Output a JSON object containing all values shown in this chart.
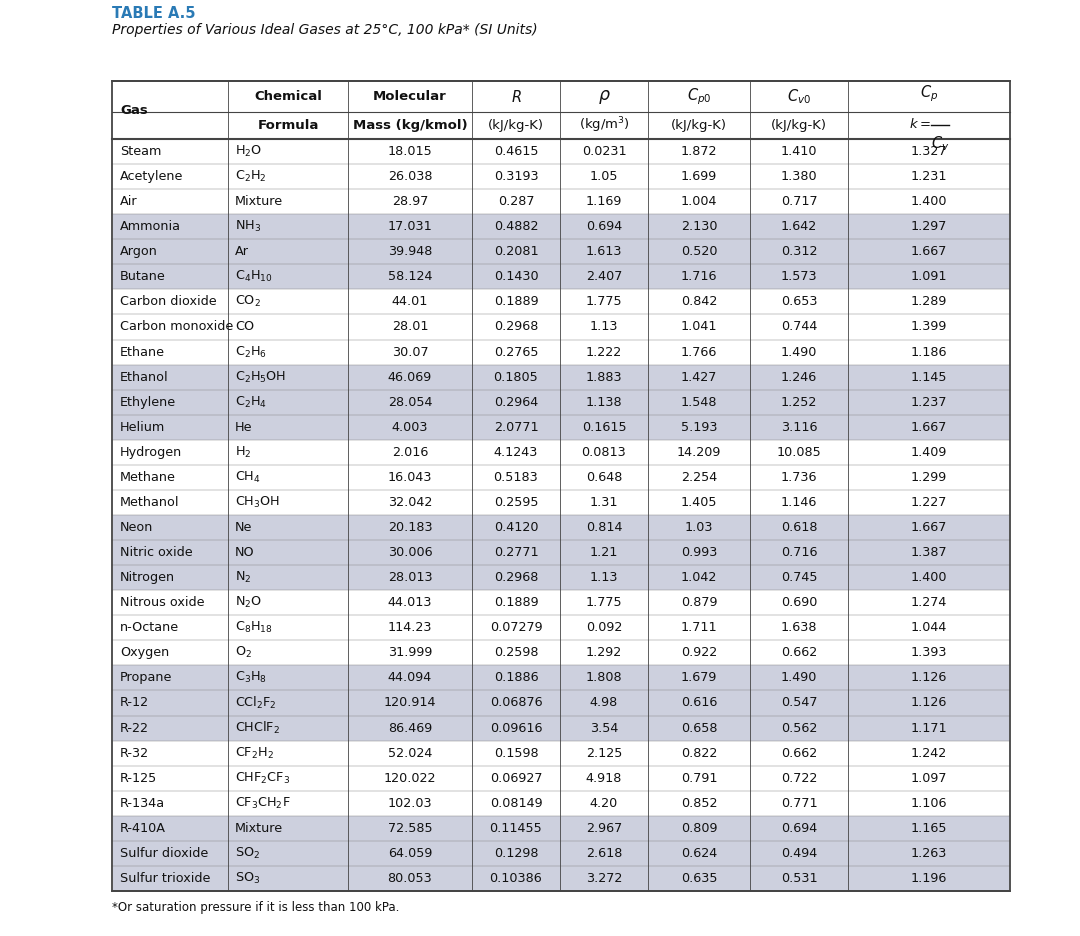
{
  "title_line1": "TABLE A.5",
  "title_line2": "Properties of Various Ideal Gases at 25°C, 100 kPa* (SI Units)",
  "footnote": "*Or saturation pressure if it is less than 100 kPa.",
  "rows": [
    [
      "Steam",
      "$\\mathregular{H_2O}$",
      "18.015",
      "0.4615",
      "0.0231",
      "1.872",
      "1.410",
      "1.327",
      0
    ],
    [
      "Acetylene",
      "$\\mathregular{C_2H_2}$",
      "26.038",
      "0.3193",
      "1.05",
      "1.699",
      "1.380",
      "1.231",
      0
    ],
    [
      "Air",
      "Mixture",
      "28.97",
      "0.287",
      "1.169",
      "1.004",
      "0.717",
      "1.400",
      0
    ],
    [
      "Ammonia",
      "$\\mathregular{NH_3}$",
      "17.031",
      "0.4882",
      "0.694",
      "2.130",
      "1.642",
      "1.297",
      1
    ],
    [
      "Argon",
      "Ar",
      "39.948",
      "0.2081",
      "1.613",
      "0.520",
      "0.312",
      "1.667",
      1
    ],
    [
      "Butane",
      "$\\mathregular{C_4H_{10}}$",
      "58.124",
      "0.1430",
      "2.407",
      "1.716",
      "1.573",
      "1.091",
      1
    ],
    [
      "Carbon dioxide",
      "$\\mathregular{CO_2}$",
      "44.01",
      "0.1889",
      "1.775",
      "0.842",
      "0.653",
      "1.289",
      0
    ],
    [
      "Carbon monoxide",
      "CO",
      "28.01",
      "0.2968",
      "1.13",
      "1.041",
      "0.744",
      "1.399",
      0
    ],
    [
      "Ethane",
      "$\\mathregular{C_2H_6}$",
      "30.07",
      "0.2765",
      "1.222",
      "1.766",
      "1.490",
      "1.186",
      0
    ],
    [
      "Ethanol",
      "$\\mathregular{C_2H_5OH}$",
      "46.069",
      "0.1805",
      "1.883",
      "1.427",
      "1.246",
      "1.145",
      1
    ],
    [
      "Ethylene",
      "$\\mathregular{C_2H_4}$",
      "28.054",
      "0.2964",
      "1.138",
      "1.548",
      "1.252",
      "1.237",
      1
    ],
    [
      "Helium",
      "He",
      "4.003",
      "2.0771",
      "0.1615",
      "5.193",
      "3.116",
      "1.667",
      1
    ],
    [
      "Hydrogen",
      "$\\mathregular{H_2}$",
      "2.016",
      "4.1243",
      "0.0813",
      "14.209",
      "10.085",
      "1.409",
      0
    ],
    [
      "Methane",
      "$\\mathregular{CH_4}$",
      "16.043",
      "0.5183",
      "0.648",
      "2.254",
      "1.736",
      "1.299",
      0
    ],
    [
      "Methanol",
      "$\\mathregular{CH_3OH}$",
      "32.042",
      "0.2595",
      "1.31",
      "1.405",
      "1.146",
      "1.227",
      0
    ],
    [
      "Neon",
      "Ne",
      "20.183",
      "0.4120",
      "0.814",
      "1.03",
      "0.618",
      "1.667",
      1
    ],
    [
      "Nitric oxide",
      "NO",
      "30.006",
      "0.2771",
      "1.21",
      "0.993",
      "0.716",
      "1.387",
      1
    ],
    [
      "Nitrogen",
      "$\\mathregular{N_2}$",
      "28.013",
      "0.2968",
      "1.13",
      "1.042",
      "0.745",
      "1.400",
      1
    ],
    [
      "Nitrous oxide",
      "$\\mathregular{N_2O}$",
      "44.013",
      "0.1889",
      "1.775",
      "0.879",
      "0.690",
      "1.274",
      0
    ],
    [
      "n-Octane",
      "$\\mathregular{C_8H_{18}}$",
      "114.23",
      "0.07279",
      "0.092",
      "1.711",
      "1.638",
      "1.044",
      0
    ],
    [
      "Oxygen",
      "$\\mathregular{O_2}$",
      "31.999",
      "0.2598",
      "1.292",
      "0.922",
      "0.662",
      "1.393",
      0
    ],
    [
      "Propane",
      "$\\mathregular{C_3H_8}$",
      "44.094",
      "0.1886",
      "1.808",
      "1.679",
      "1.490",
      "1.126",
      1
    ],
    [
      "R-12",
      "$\\mathregular{CCl_2F_2}$",
      "120.914",
      "0.06876",
      "4.98",
      "0.616",
      "0.547",
      "1.126",
      1
    ],
    [
      "R-22",
      "$\\mathregular{CHClF_2}$",
      "86.469",
      "0.09616",
      "3.54",
      "0.658",
      "0.562",
      "1.171",
      1
    ],
    [
      "R-32",
      "$\\mathregular{CF_2H_2}$",
      "52.024",
      "0.1598",
      "2.125",
      "0.822",
      "0.662",
      "1.242",
      0
    ],
    [
      "R-125",
      "$\\mathregular{CHF_2CF_3}$",
      "120.022",
      "0.06927",
      "4.918",
      "0.791",
      "0.722",
      "1.097",
      0
    ],
    [
      "R-134a",
      "$\\mathregular{CF_3CH_2F}$",
      "102.03",
      "0.08149",
      "4.20",
      "0.852",
      "0.771",
      "1.106",
      0
    ],
    [
      "R-410A",
      "Mixture",
      "72.585",
      "0.11455",
      "2.967",
      "0.809",
      "0.694",
      "1.165",
      1
    ],
    [
      "Sulfur dioxide",
      "$\\mathregular{SO_2}$",
      "64.059",
      "0.1298",
      "2.618",
      "0.624",
      "0.494",
      "1.263",
      1
    ],
    [
      "Sulfur trioxide",
      "$\\mathregular{SO_3}$",
      "80.053",
      "0.10386",
      "3.272",
      "0.635",
      "0.531",
      "1.196",
      1
    ]
  ],
  "shade_color": "#cdd0de",
  "bg_color": "#ffffff",
  "border_color": "#444444",
  "title_color": "#2a7ab5",
  "text_color": "#111111",
  "header_color": "#111111"
}
